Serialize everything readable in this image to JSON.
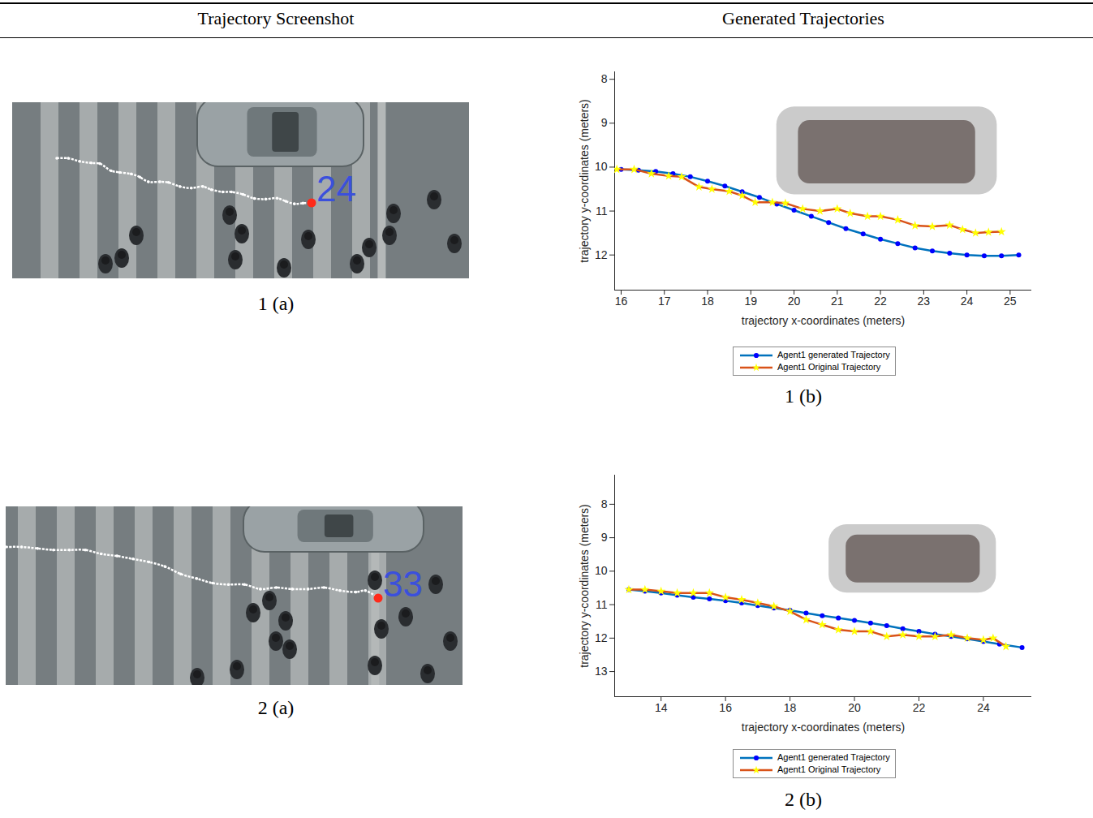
{
  "header": [
    "Trajectory Screenshot",
    "Generated Trajectories"
  ],
  "screenshots": [
    {
      "agent_label": "24",
      "caption": "1 (a)"
    },
    {
      "agent_label": "33",
      "caption": "2 (a)"
    }
  ],
  "chart_data": [
    {
      "type": "line",
      "caption": "1 (b)",
      "x_label": "trajectory x-coordinates (meters)",
      "y_label": "trajectory y-coordinates (meters)",
      "xlim": [
        15.85,
        25.5
      ],
      "ylim": [
        12.8,
        7.83
      ],
      "xticks": [
        16,
        17,
        18,
        19,
        20,
        21,
        22,
        23,
        24,
        25
      ],
      "yticks": [
        8,
        9,
        10,
        11,
        12
      ],
      "legend": "bottom",
      "vehicle": {
        "outer": {
          "x": [
            19.6,
            24.7
          ],
          "y": [
            8.63,
            10.63
          ]
        },
        "inner": {
          "x": [
            20.1,
            24.2
          ],
          "y": [
            8.94,
            10.38
          ]
        }
      },
      "series": [
        {
          "name": "Agent1 generated Trajectory",
          "color": "#0072bd",
          "marker": "circle",
          "line_style": "solid",
          "x": [
            16.0,
            16.4,
            16.8,
            17.2,
            17.6,
            18.0,
            18.4,
            18.8,
            19.2,
            19.6,
            20.0,
            20.4,
            20.8,
            21.2,
            21.6,
            22.0,
            22.4,
            22.8,
            23.2,
            23.6,
            24.0,
            24.4,
            24.8,
            25.2
          ],
          "values": [
            10.05,
            10.07,
            10.1,
            10.15,
            10.22,
            10.32,
            10.43,
            10.56,
            10.69,
            10.84,
            10.98,
            11.12,
            11.26,
            11.4,
            11.52,
            11.64,
            11.74,
            11.84,
            11.91,
            11.96,
            12.0,
            12.02,
            12.02,
            12.0
          ]
        },
        {
          "name": "Agent1 Original Trajectory",
          "color": "#d95319",
          "marker": "star",
          "line_style": "solid",
          "x": [
            15.9,
            16.3,
            16.7,
            17.1,
            17.4,
            17.8,
            18.1,
            18.5,
            18.8,
            19.1,
            19.5,
            19.8,
            20.2,
            20.6,
            21.0,
            21.3,
            21.7,
            22.0,
            22.4,
            22.8,
            23.2,
            23.6,
            23.9,
            24.2,
            24.5,
            24.8
          ],
          "values": [
            10.05,
            10.05,
            10.15,
            10.2,
            10.22,
            10.45,
            10.5,
            10.55,
            10.65,
            10.8,
            10.8,
            10.82,
            10.95,
            11.0,
            10.95,
            11.05,
            11.12,
            11.12,
            11.2,
            11.33,
            11.35,
            11.32,
            11.42,
            11.5,
            11.48,
            11.47
          ]
        }
      ]
    },
    {
      "type": "line",
      "caption": "2 (b)",
      "x_label": "trajectory x-coordinates (meters)",
      "y_label": "trajectory y-coordinates (meters)",
      "xlim": [
        12.56,
        25.5
      ],
      "ylim": [
        13.75,
        7.13
      ],
      "xticks": [
        14,
        16,
        18,
        20,
        22,
        24
      ],
      "yticks": [
        8,
        9,
        10,
        11,
        12,
        13
      ],
      "legend": "bottom",
      "vehicle": {
        "outer": {
          "x": [
            19.21,
            24.4
          ],
          "y": [
            8.61,
            10.65
          ]
        },
        "inner": {
          "x": [
            19.74,
            23.9
          ],
          "y": [
            8.92,
            10.35
          ]
        }
      },
      "series": [
        {
          "name": "Agent1 generated Trajectory",
          "color": "#0072bd",
          "marker": "circle",
          "line_style": "solid",
          "x": [
            13.0,
            13.5,
            14.0,
            14.5,
            15.0,
            15.5,
            16.0,
            16.5,
            17.0,
            17.5,
            18.0,
            18.5,
            19.0,
            19.5,
            20.0,
            20.5,
            21.0,
            21.5,
            22.0,
            22.5,
            23.0,
            23.5,
            24.0,
            24.5,
            25.2
          ],
          "values": [
            10.55,
            10.6,
            10.65,
            10.72,
            10.78,
            10.83,
            10.88,
            10.95,
            11.03,
            11.1,
            11.17,
            11.25,
            11.33,
            11.4,
            11.47,
            11.55,
            11.63,
            11.72,
            11.8,
            11.88,
            11.95,
            12.02,
            12.1,
            12.18,
            12.28
          ]
        },
        {
          "name": "Agent1 Original Trajectory",
          "color": "#d95319",
          "marker": "star",
          "line_style": "solid",
          "x": [
            13.0,
            13.5,
            14.0,
            14.5,
            15.0,
            15.5,
            16.0,
            16.5,
            17.0,
            17.5,
            18.0,
            18.5,
            19.0,
            19.5,
            20.0,
            20.5,
            21.0,
            21.5,
            22.0,
            22.5,
            23.0,
            23.5,
            24.0,
            24.3,
            24.7
          ],
          "values": [
            10.55,
            10.55,
            10.6,
            10.65,
            10.65,
            10.65,
            10.78,
            10.85,
            10.95,
            11.05,
            11.2,
            11.45,
            11.6,
            11.75,
            11.8,
            11.8,
            11.95,
            11.9,
            11.95,
            11.95,
            11.9,
            12.0,
            12.05,
            12.0,
            12.25
          ]
        }
      ]
    }
  ]
}
